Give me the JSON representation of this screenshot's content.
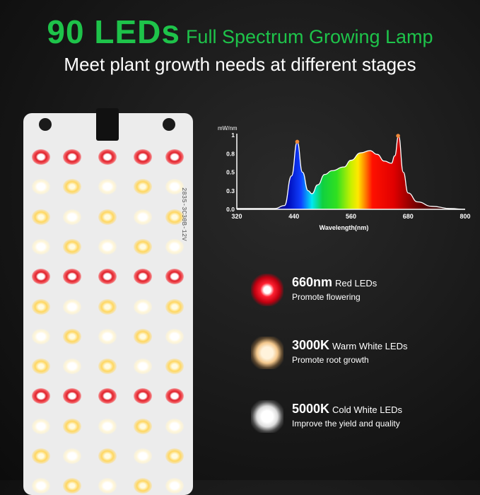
{
  "header": {
    "title_big": "90 LEDs",
    "title_small": "Full Spectrum Growing Lamp",
    "subtitle": "Meet plant growth needs at different stages"
  },
  "board": {
    "label": "2835-3C30B-12V",
    "rows": [
      "red",
      "cw",
      "wc",
      "cw",
      "red",
      "wc",
      "cw",
      "wc",
      "red",
      "cw",
      "wc",
      "cw"
    ]
  },
  "chart_data": {
    "type": "area",
    "ylabel": "mW/nm",
    "xlabel": "Wavelength(nm)",
    "xlim": [
      320,
      800
    ],
    "ylim": [
      0,
      1
    ],
    "xticks": [
      "320",
      "440",
      "560",
      "680",
      "800"
    ],
    "yticks": [
      "0.0",
      "0.3",
      "0.5",
      "0.8",
      "1"
    ],
    "grid": false,
    "x": [
      320,
      400,
      420,
      435,
      447,
      458,
      470,
      478,
      490,
      505,
      520,
      545,
      560,
      580,
      600,
      615,
      630,
      645,
      652,
      660,
      670,
      680,
      700,
      730,
      770,
      800
    ],
    "y": [
      0.01,
      0.01,
      0.05,
      0.45,
      0.91,
      0.5,
      0.25,
      0.21,
      0.33,
      0.47,
      0.52,
      0.57,
      0.66,
      0.76,
      0.79,
      0.74,
      0.65,
      0.62,
      0.72,
      0.99,
      0.5,
      0.22,
      0.1,
      0.04,
      0.01,
      0.0
    ],
    "peaks": [
      447,
      659
    ],
    "colors": {
      "curve": "#ffffff",
      "peak_marker": "#f08a3a"
    }
  },
  "features": [
    {
      "title": "660nm",
      "type": "Red LEDs",
      "desc": "Promote flowering",
      "color": "#e51b2a"
    },
    {
      "title": "3000K",
      "type": "Warm White LEDs",
      "desc": "Promote root growth",
      "color": "#f5c98a"
    },
    {
      "title": "5000K",
      "type": "Cold White LEDs",
      "desc": "Improve the yield and quality",
      "color": "#e8e8e8"
    }
  ]
}
